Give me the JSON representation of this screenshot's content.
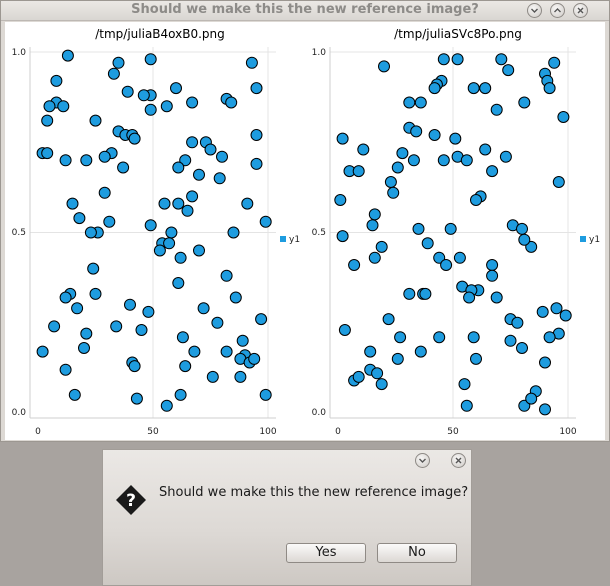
{
  "window": {
    "title": "Should we make this the new reference image?"
  },
  "dialog": {
    "message": "Should we make this the new reference image?",
    "yes_label": "Yes",
    "no_label": "No"
  },
  "colors": {
    "marker_fill": "#1e9cdf",
    "marker_stroke": "#000000",
    "grid": "#e4e4e4"
  },
  "chart_data": [
    {
      "type": "scatter",
      "title": "/tmp/juliaB4oxB0.png",
      "xlim": [
        0,
        100
      ],
      "ylim": [
        0,
        1
      ],
      "x_ticks": [
        "0",
        "50",
        "100"
      ],
      "y_ticks": [
        "0.0",
        "0.5",
        "1.0"
      ],
      "grid": true,
      "legend": "right",
      "series": [
        {
          "name": "y1",
          "points": [
            [
              13,
              0.99
            ],
            [
              49,
              0.98
            ],
            [
              35,
              0.97
            ],
            [
              93,
              0.97
            ],
            [
              33,
              0.94
            ],
            [
              8,
              0.92
            ],
            [
              95,
              0.9
            ],
            [
              60,
              0.9
            ],
            [
              39,
              0.89
            ],
            [
              49,
              0.88
            ],
            [
              46,
              0.88
            ],
            [
              82,
              0.87
            ],
            [
              84,
              0.86
            ],
            [
              67,
              0.86
            ],
            [
              8,
              0.86
            ],
            [
              11,
              0.85
            ],
            [
              5,
              0.85
            ],
            [
              49,
              0.84
            ],
            [
              56,
              0.85
            ],
            [
              4,
              0.81
            ],
            [
              25,
              0.81
            ],
            [
              35,
              0.78
            ],
            [
              38,
              0.77
            ],
            [
              41,
              0.77
            ],
            [
              42,
              0.76
            ],
            [
              95,
              0.77
            ],
            [
              73,
              0.75
            ],
            [
              67,
              0.75
            ],
            [
              75,
              0.73
            ],
            [
              2,
              0.72
            ],
            [
              4,
              0.72
            ],
            [
              32,
              0.72
            ],
            [
              29,
              0.71
            ],
            [
              21,
              0.7
            ],
            [
              12,
              0.7
            ],
            [
              80,
              0.71
            ],
            [
              64,
              0.7
            ],
            [
              37,
              0.68
            ],
            [
              61,
              0.68
            ],
            [
              95,
              0.69
            ],
            [
              70,
              0.66
            ],
            [
              79,
              0.65
            ],
            [
              29,
              0.61
            ],
            [
              67,
              0.6
            ],
            [
              15,
              0.58
            ],
            [
              61,
              0.58
            ],
            [
              55,
              0.58
            ],
            [
              91,
              0.58
            ],
            [
              18,
              0.54
            ],
            [
              31,
              0.53
            ],
            [
              49,
              0.52
            ],
            [
              65,
              0.56
            ],
            [
              26,
              0.5
            ],
            [
              23,
              0.5
            ],
            [
              85,
              0.5
            ],
            [
              58,
              0.5
            ],
            [
              99,
              0.53
            ],
            [
              54,
              0.47
            ],
            [
              53,
              0.45
            ],
            [
              57,
              0.47
            ],
            [
              62,
              0.43
            ],
            [
              70,
              0.45
            ],
            [
              24,
              0.4
            ],
            [
              61,
              0.36
            ],
            [
              82,
              0.38
            ],
            [
              14,
              0.33
            ],
            [
              12,
              0.32
            ],
            [
              25,
              0.33
            ],
            [
              40,
              0.3
            ],
            [
              17,
              0.29
            ],
            [
              86,
              0.32
            ],
            [
              48,
              0.28
            ],
            [
              72,
              0.29
            ],
            [
              7,
              0.24
            ],
            [
              34,
              0.24
            ],
            [
              78,
              0.25
            ],
            [
              89,
              0.2
            ],
            [
              97,
              0.26
            ],
            [
              45,
              0.23
            ],
            [
              21,
              0.22
            ],
            [
              20,
              0.18
            ],
            [
              63,
              0.21
            ],
            [
              41,
              0.14
            ],
            [
              42,
              0.13
            ],
            [
              82,
              0.17
            ],
            [
              68,
              0.17
            ],
            [
              90,
              0.16
            ],
            [
              2,
              0.17
            ],
            [
              12,
              0.12
            ],
            [
              64,
              0.13
            ],
            [
              88,
              0.15
            ],
            [
              92,
              0.14
            ],
            [
              76,
              0.1
            ],
            [
              88,
              0.1
            ],
            [
              16,
              0.05
            ],
            [
              43,
              0.04
            ],
            [
              56,
              0.02
            ],
            [
              62,
              0.05
            ],
            [
              99,
              0.05
            ],
            [
              94,
              0.15
            ]
          ]
        }
      ]
    },
    {
      "type": "scatter",
      "title": "/tmp/juliaSVc8Po.png",
      "xlim": [
        0,
        100
      ],
      "ylim": [
        0,
        1
      ],
      "x_ticks": [
        "0",
        "50",
        "100"
      ],
      "y_ticks": [
        "0.0",
        "0.5",
        "1.0"
      ],
      "grid": true,
      "legend": "right",
      "series": [
        {
          "name": "y1",
          "points": [
            [
              46,
              0.98
            ],
            [
              52,
              0.98
            ],
            [
              71,
              0.98
            ],
            [
              94,
              0.97
            ],
            [
              20,
              0.96
            ],
            [
              74,
              0.95
            ],
            [
              90,
              0.94
            ],
            [
              45,
              0.92
            ],
            [
              91,
              0.92
            ],
            [
              43,
              0.91
            ],
            [
              92,
              0.9
            ],
            [
              42,
              0.9
            ],
            [
              59,
              0.9
            ],
            [
              64,
              0.9
            ],
            [
              36,
              0.86
            ],
            [
              31,
              0.86
            ],
            [
              81,
              0.86
            ],
            [
              69,
              0.84
            ],
            [
              98,
              0.82
            ],
            [
              2,
              0.76
            ],
            [
              31,
              0.79
            ],
            [
              34,
              0.78
            ],
            [
              11,
              0.73
            ],
            [
              51,
              0.76
            ],
            [
              42,
              0.77
            ],
            [
              28,
              0.72
            ],
            [
              64,
              0.73
            ],
            [
              46,
              0.7
            ],
            [
              73,
              0.71
            ],
            [
              52,
              0.71
            ],
            [
              56,
              0.7
            ],
            [
              26,
              0.68
            ],
            [
              5,
              0.67
            ],
            [
              9,
              0.67
            ],
            [
              23,
              0.64
            ],
            [
              67,
              0.67
            ],
            [
              33,
              0.7
            ],
            [
              96,
              0.64
            ],
            [
              1,
              0.59
            ],
            [
              24,
              0.61
            ],
            [
              62,
              0.6
            ],
            [
              60,
              0.59
            ],
            [
              16,
              0.55
            ],
            [
              15,
              0.52
            ],
            [
              76,
              0.52
            ],
            [
              80,
              0.51
            ],
            [
              35,
              0.51
            ],
            [
              49,
              0.51
            ],
            [
              84,
              0.46
            ],
            [
              2,
              0.49
            ],
            [
              39,
              0.47
            ],
            [
              81,
              0.48
            ],
            [
              19,
              0.46
            ],
            [
              44,
              0.43
            ],
            [
              7,
              0.41
            ],
            [
              16,
              0.43
            ],
            [
              53,
              0.43
            ],
            [
              67,
              0.41
            ],
            [
              47,
              0.41
            ],
            [
              67,
              0.38
            ],
            [
              54,
              0.35
            ],
            [
              61,
              0.34
            ],
            [
              58,
              0.34
            ],
            [
              31,
              0.33
            ],
            [
              37,
              0.33
            ],
            [
              38,
              0.33
            ],
            [
              69,
              0.32
            ],
            [
              57,
              0.32
            ],
            [
              95,
              0.29
            ],
            [
              89,
              0.28
            ],
            [
              99,
              0.27
            ],
            [
              75,
              0.26
            ],
            [
              3,
              0.23
            ],
            [
              22,
              0.26
            ],
            [
              78,
              0.25
            ],
            [
              44,
              0.21
            ],
            [
              27,
              0.21
            ],
            [
              59,
              0.21
            ],
            [
              96,
              0.22
            ],
            [
              36,
              0.17
            ],
            [
              75,
              0.2
            ],
            [
              14,
              0.17
            ],
            [
              80,
              0.18
            ],
            [
              26,
              0.15
            ],
            [
              55,
              0.08
            ],
            [
              60,
              0.15
            ],
            [
              56,
              0.02
            ],
            [
              7,
              0.09
            ],
            [
              9,
              0.1
            ],
            [
              14,
              0.12
            ],
            [
              17,
              0.11
            ],
            [
              19,
              0.08
            ],
            [
              86,
              0.06
            ],
            [
              81,
              0.02
            ],
            [
              90,
              0.01
            ],
            [
              84,
              0.04
            ],
            [
              90,
              0.14
            ],
            [
              92,
              0.21
            ]
          ]
        }
      ]
    }
  ]
}
